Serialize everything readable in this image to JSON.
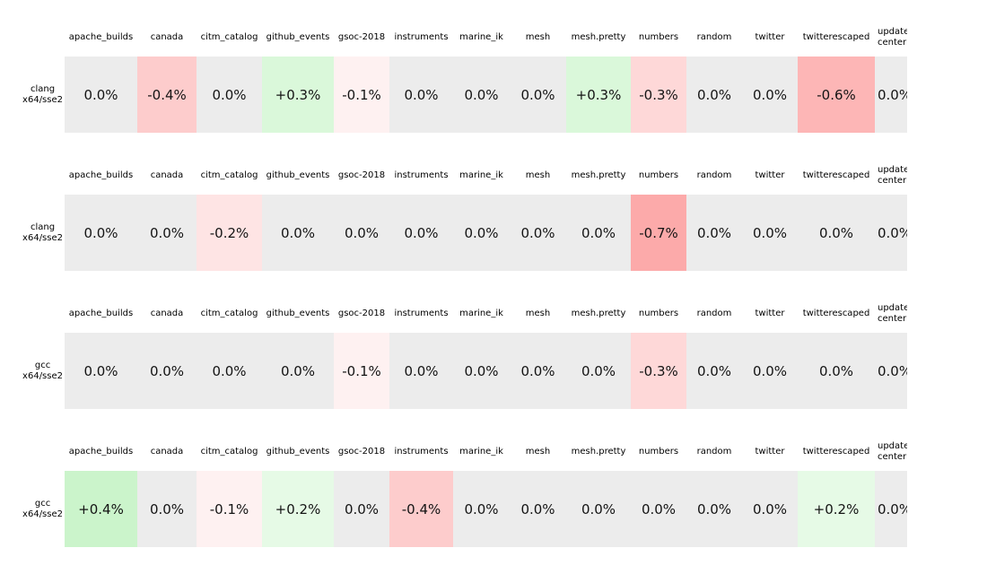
{
  "figure": {
    "columns": [
      {
        "label": "apache_builds",
        "width": 81,
        "clipped": false
      },
      {
        "label": "canada",
        "width": 66,
        "clipped": false
      },
      {
        "label": "citm_catalog",
        "width": 73,
        "clipped": false
      },
      {
        "label": "github_events",
        "width": 80,
        "clipped": false
      },
      {
        "label": "gsoc-2018",
        "width": 62,
        "clipped": false
      },
      {
        "label": "instruments",
        "width": 71,
        "clipped": false
      },
      {
        "label": "marine_ik",
        "width": 63,
        "clipped": false
      },
      {
        "label": "mesh",
        "width": 63,
        "clipped": false
      },
      {
        "label": "mesh.pretty",
        "width": 72,
        "clipped": false
      },
      {
        "label": "numbers",
        "width": 62,
        "clipped": false
      },
      {
        "label": "random",
        "width": 62,
        "clipped": false
      },
      {
        "label": "twitter",
        "width": 62,
        "clipped": false
      },
      {
        "label": "twitterescaped",
        "width": 86,
        "clipped": false
      },
      {
        "label": "update-\ncenter",
        "width": 70,
        "clipped": true
      }
    ],
    "groups": [
      {
        "row_label": "clang\nx64/sse2",
        "cells": [
          {
            "text": "0.0%",
            "bg": "#ececec"
          },
          {
            "text": "-0.4%",
            "bg": "#fdcccc"
          },
          {
            "text": "0.0%",
            "bg": "#ececec"
          },
          {
            "text": "+0.3%",
            "bg": "#daf8da"
          },
          {
            "text": "-0.1%",
            "bg": "#fef1f1"
          },
          {
            "text": "0.0%",
            "bg": "#ececec"
          },
          {
            "text": "0.0%",
            "bg": "#ececec"
          },
          {
            "text": "0.0%",
            "bg": "#ececec"
          },
          {
            "text": "+0.3%",
            "bg": "#daf8da"
          },
          {
            "text": "-0.3%",
            "bg": "#fed8d8"
          },
          {
            "text": "0.0%",
            "bg": "#ececec"
          },
          {
            "text": "0.0%",
            "bg": "#ececec"
          },
          {
            "text": "-0.6%",
            "bg": "#fdb6b6"
          },
          {
            "text": "0.0%",
            "bg": "#ececec"
          }
        ]
      },
      {
        "row_label": "clang\nx64/sse2",
        "cells": [
          {
            "text": "0.0%",
            "bg": "#ececec"
          },
          {
            "text": "0.0%",
            "bg": "#ececec"
          },
          {
            "text": "-0.2%",
            "bg": "#fee4e4"
          },
          {
            "text": "0.0%",
            "bg": "#ececec"
          },
          {
            "text": "0.0%",
            "bg": "#ececec"
          },
          {
            "text": "0.0%",
            "bg": "#ececec"
          },
          {
            "text": "0.0%",
            "bg": "#ececec"
          },
          {
            "text": "0.0%",
            "bg": "#ececec"
          },
          {
            "text": "0.0%",
            "bg": "#ececec"
          },
          {
            "text": "-0.7%",
            "bg": "#fcaaaa"
          },
          {
            "text": "0.0%",
            "bg": "#ececec"
          },
          {
            "text": "0.0%",
            "bg": "#ececec"
          },
          {
            "text": "0.0%",
            "bg": "#ececec"
          },
          {
            "text": "0.0%",
            "bg": "#ececec"
          }
        ]
      },
      {
        "row_label": "gcc\nx64/sse2",
        "cells": [
          {
            "text": "0.0%",
            "bg": "#ececec"
          },
          {
            "text": "0.0%",
            "bg": "#ececec"
          },
          {
            "text": "0.0%",
            "bg": "#ececec"
          },
          {
            "text": "0.0%",
            "bg": "#ececec"
          },
          {
            "text": "-0.1%",
            "bg": "#fef1f1"
          },
          {
            "text": "0.0%",
            "bg": "#ececec"
          },
          {
            "text": "0.0%",
            "bg": "#ececec"
          },
          {
            "text": "0.0%",
            "bg": "#ececec"
          },
          {
            "text": "0.0%",
            "bg": "#ececec"
          },
          {
            "text": "-0.3%",
            "bg": "#fed8d8"
          },
          {
            "text": "0.0%",
            "bg": "#ececec"
          },
          {
            "text": "0.0%",
            "bg": "#ececec"
          },
          {
            "text": "0.0%",
            "bg": "#ececec"
          },
          {
            "text": "0.0%",
            "bg": "#ececec"
          }
        ]
      },
      {
        "row_label": "gcc\nx64/sse2",
        "cells": [
          {
            "text": "+0.4%",
            "bg": "#cbf4cb"
          },
          {
            "text": "0.0%",
            "bg": "#ececec"
          },
          {
            "text": "-0.1%",
            "bg": "#fef1f1"
          },
          {
            "text": "+0.2%",
            "bg": "#e6fae6"
          },
          {
            "text": "0.0%",
            "bg": "#ececec"
          },
          {
            "text": "-0.4%",
            "bg": "#fdcccc"
          },
          {
            "text": "0.0%",
            "bg": "#ececec"
          },
          {
            "text": "0.0%",
            "bg": "#ececec"
          },
          {
            "text": "0.0%",
            "bg": "#ececec"
          },
          {
            "text": "0.0%",
            "bg": "#ececec"
          },
          {
            "text": "0.0%",
            "bg": "#ececec"
          },
          {
            "text": "0.0%",
            "bg": "#ececec"
          },
          {
            "text": "+0.2%",
            "bg": "#e6fae6"
          },
          {
            "text": "0.0%",
            "bg": "#ececec"
          }
        ]
      }
    ]
  },
  "chart_data": {
    "type": "heatmap",
    "title": "",
    "columns": [
      "apache_builds",
      "canada",
      "citm_catalog",
      "github_events",
      "gsoc-2018",
      "instruments",
      "marine_ik",
      "mesh",
      "mesh.pretty",
      "numbers",
      "random",
      "twitter",
      "twitterescaped",
      "update-center"
    ],
    "rows": [
      "clang x64/sse2",
      "clang x64/sse2",
      "gcc x64/sse2",
      "gcc x64/sse2"
    ],
    "values_pct": [
      [
        0.0,
        -0.4,
        0.0,
        0.3,
        -0.1,
        0.0,
        0.0,
        0.0,
        0.3,
        -0.3,
        0.0,
        0.0,
        -0.6,
        0.0
      ],
      [
        0.0,
        0.0,
        -0.2,
        0.0,
        0.0,
        0.0,
        0.0,
        0.0,
        0.0,
        -0.7,
        0.0,
        0.0,
        0.0,
        0.0
      ],
      [
        0.0,
        0.0,
        0.0,
        0.0,
        -0.1,
        0.0,
        0.0,
        0.0,
        0.0,
        -0.3,
        0.0,
        0.0,
        0.0,
        0.0
      ],
      [
        0.4,
        0.0,
        -0.1,
        0.2,
        0.0,
        -0.4,
        0.0,
        0.0,
        0.0,
        0.0,
        0.0,
        0.0,
        0.2,
        0.0
      ]
    ],
    "cell_label_format": "signed percent, one decimal (e.g. +0.3%, -0.4%, 0.0%)",
    "color_scale": {
      "zero": "#ececec",
      "negative_max": "#fcaaaa",
      "positive_max": "#cbf4cb"
    },
    "legend": "none",
    "grid": "off",
    "layout_hints": {
      "last_column_clipped_at_right_edge": true,
      "column_headers_repeat_above_each_row": true
    }
  }
}
